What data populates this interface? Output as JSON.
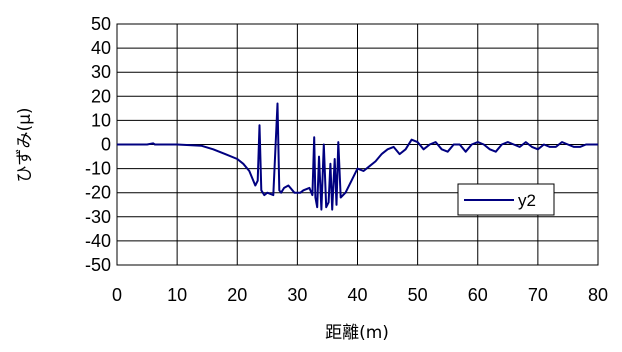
{
  "chart_data": {
    "type": "line",
    "xlabel": "距離(m)",
    "ylabel": "ひずみ(μ)",
    "xlim": [
      0,
      80
    ],
    "ylim": [
      -50,
      50
    ],
    "x_ticks": [
      "0",
      "10",
      "20",
      "30",
      "40",
      "50",
      "60",
      "70",
      "80"
    ],
    "y_ticks": [
      "50",
      "40",
      "30",
      "20",
      "10",
      "0",
      "-10",
      "-20",
      "-30",
      "-40",
      "-50"
    ],
    "grid": true,
    "legend_position": "right",
    "series": [
      {
        "name": "y2",
        "color": "#000080",
        "x": [
          0,
          5,
          6,
          6.3,
          10,
          14,
          16,
          18,
          20,
          21,
          22,
          22.5,
          23,
          23.4,
          23.7,
          24,
          24.5,
          25,
          26,
          26.7,
          27,
          27.3,
          27.8,
          28.5,
          29.5,
          30.5,
          31,
          32,
          32.5,
          32.8,
          33,
          33.3,
          33.6,
          34,
          34.4,
          34.8,
          35.2,
          35.5,
          35.8,
          36.2,
          36.5,
          36.8,
          37.2,
          38,
          39,
          40,
          41,
          42,
          43,
          44,
          45,
          46,
          47,
          48,
          49,
          50,
          51,
          52,
          53,
          54,
          55,
          56,
          57,
          58,
          59,
          60,
          61,
          62,
          63,
          64,
          65,
          66,
          67,
          68,
          69,
          70,
          71,
          72,
          73,
          74,
          75,
          76,
          77,
          78,
          79,
          80
        ],
        "values": [
          0,
          0,
          0.5,
          0,
          0,
          -0.5,
          -2,
          -4,
          -6,
          -8,
          -11,
          -14,
          -17,
          -15,
          8,
          -19,
          -21,
          -20,
          -21,
          17,
          -19,
          -20,
          -18,
          -17,
          -20,
          -20,
          -19,
          -18,
          -21,
          3,
          -22,
          -26,
          -5,
          -27,
          0,
          -26,
          -24,
          -8,
          -27,
          -6,
          -25,
          1,
          -22,
          -20,
          -15,
          -10,
          -11,
          -9,
          -7,
          -4,
          -2,
          -1,
          -4,
          -2,
          2,
          1,
          -2,
          0,
          1,
          -2,
          -3,
          0,
          0,
          -3,
          0,
          1,
          0,
          -2,
          -3,
          0,
          1,
          0,
          -1,
          1,
          -1,
          -2,
          0,
          -1,
          -1,
          1,
          0,
          -1,
          -1,
          0,
          0,
          0
        ]
      }
    ]
  }
}
